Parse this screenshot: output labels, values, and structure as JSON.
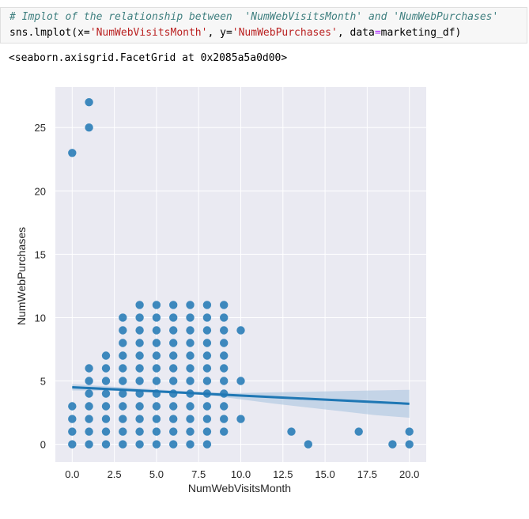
{
  "code": {
    "comment": "# Implot of the relationship between  'NumWebVisitsMonth' and 'NumWebPurchases'",
    "call_prefix": "sns.lmplot(x=",
    "x_arg": "'NumWebVisitsMonth'",
    "y_sep": ", y=",
    "y_arg": "'NumWebPurchases'",
    "data_sep": ", data",
    "equals": "=",
    "data_arg": "marketing_df)"
  },
  "output": {
    "text": "<seaborn.axisgrid.FacetGrid at 0x2085a5a0d00>"
  },
  "chart_data": {
    "type": "scatter",
    "xlabel": "NumWebVisitsMonth",
    "ylabel": "NumWebPurchases",
    "xlim": [
      -1,
      21
    ],
    "ylim": [
      -1.4,
      28.2
    ],
    "xticks": [
      "0.0",
      "2.5",
      "5.0",
      "7.5",
      "10.0",
      "12.5",
      "15.0",
      "17.5",
      "20.0"
    ],
    "yticks": [
      "0",
      "5",
      "10",
      "15",
      "20",
      "25"
    ],
    "grid": true,
    "colors": {
      "point": "#1f77b4",
      "line": "#1f77b4",
      "ci": "#aac4e0",
      "background": "#eaeaf2",
      "grid": "#ffffff"
    },
    "points": [
      [
        0,
        0
      ],
      [
        0,
        1
      ],
      [
        0,
        2
      ],
      [
        0,
        3
      ],
      [
        0,
        23
      ],
      [
        1,
        0
      ],
      [
        1,
        1
      ],
      [
        1,
        2
      ],
      [
        1,
        3
      ],
      [
        1,
        4
      ],
      [
        1,
        5
      ],
      [
        1,
        6
      ],
      [
        1,
        25
      ],
      [
        1,
        27
      ],
      [
        2,
        0
      ],
      [
        2,
        1
      ],
      [
        2,
        2
      ],
      [
        2,
        3
      ],
      [
        2,
        4
      ],
      [
        2,
        5
      ],
      [
        2,
        6
      ],
      [
        2,
        7
      ],
      [
        3,
        0
      ],
      [
        3,
        1
      ],
      [
        3,
        2
      ],
      [
        3,
        3
      ],
      [
        3,
        4
      ],
      [
        3,
        5
      ],
      [
        3,
        6
      ],
      [
        3,
        7
      ],
      [
        3,
        8
      ],
      [
        3,
        9
      ],
      [
        3,
        10
      ],
      [
        4,
        0
      ],
      [
        4,
        1
      ],
      [
        4,
        2
      ],
      [
        4,
        3
      ],
      [
        4,
        4
      ],
      [
        4,
        5
      ],
      [
        4,
        6
      ],
      [
        4,
        7
      ],
      [
        4,
        8
      ],
      [
        4,
        9
      ],
      [
        4,
        10
      ],
      [
        4,
        11
      ],
      [
        5,
        0
      ],
      [
        5,
        1
      ],
      [
        5,
        2
      ],
      [
        5,
        3
      ],
      [
        5,
        4
      ],
      [
        5,
        5
      ],
      [
        5,
        6
      ],
      [
        5,
        7
      ],
      [
        5,
        8
      ],
      [
        5,
        9
      ],
      [
        5,
        10
      ],
      [
        5,
        11
      ],
      [
        6,
        0
      ],
      [
        6,
        1
      ],
      [
        6,
        2
      ],
      [
        6,
        3
      ],
      [
        6,
        4
      ],
      [
        6,
        5
      ],
      [
        6,
        6
      ],
      [
        6,
        7
      ],
      [
        6,
        8
      ],
      [
        6,
        9
      ],
      [
        6,
        10
      ],
      [
        6,
        11
      ],
      [
        7,
        0
      ],
      [
        7,
        1
      ],
      [
        7,
        2
      ],
      [
        7,
        3
      ],
      [
        7,
        4
      ],
      [
        7,
        5
      ],
      [
        7,
        6
      ],
      [
        7,
        7
      ],
      [
        7,
        8
      ],
      [
        7,
        9
      ],
      [
        7,
        10
      ],
      [
        7,
        11
      ],
      [
        8,
        0
      ],
      [
        8,
        1
      ],
      [
        8,
        2
      ],
      [
        8,
        3
      ],
      [
        8,
        4
      ],
      [
        8,
        5
      ],
      [
        8,
        6
      ],
      [
        8,
        7
      ],
      [
        8,
        8
      ],
      [
        8,
        9
      ],
      [
        8,
        10
      ],
      [
        8,
        11
      ],
      [
        9,
        1
      ],
      [
        9,
        2
      ],
      [
        9,
        3
      ],
      [
        9,
        4
      ],
      [
        9,
        5
      ],
      [
        9,
        6
      ],
      [
        9,
        7
      ],
      [
        9,
        8
      ],
      [
        9,
        9
      ],
      [
        9,
        10
      ],
      [
        9,
        11
      ],
      [
        10,
        2
      ],
      [
        10,
        5
      ],
      [
        10,
        9
      ],
      [
        13,
        1
      ],
      [
        14,
        0
      ],
      [
        17,
        1
      ],
      [
        19,
        0
      ],
      [
        20,
        0
      ],
      [
        20,
        1
      ]
    ],
    "regression": {
      "x": [
        0,
        20
      ],
      "y": [
        4.5,
        3.2
      ]
    },
    "ci_band": {
      "x": [
        0,
        2,
        4,
        6,
        8,
        10,
        12,
        14,
        16,
        18,
        20
      ],
      "upper": [
        4.75,
        4.58,
        4.42,
        4.25,
        4.12,
        4.05,
        4.1,
        4.15,
        4.2,
        4.25,
        4.3
      ],
      "lower": [
        4.25,
        4.22,
        4.2,
        4.1,
        3.9,
        3.55,
        3.2,
        2.9,
        2.6,
        2.3,
        2.1
      ]
    }
  }
}
